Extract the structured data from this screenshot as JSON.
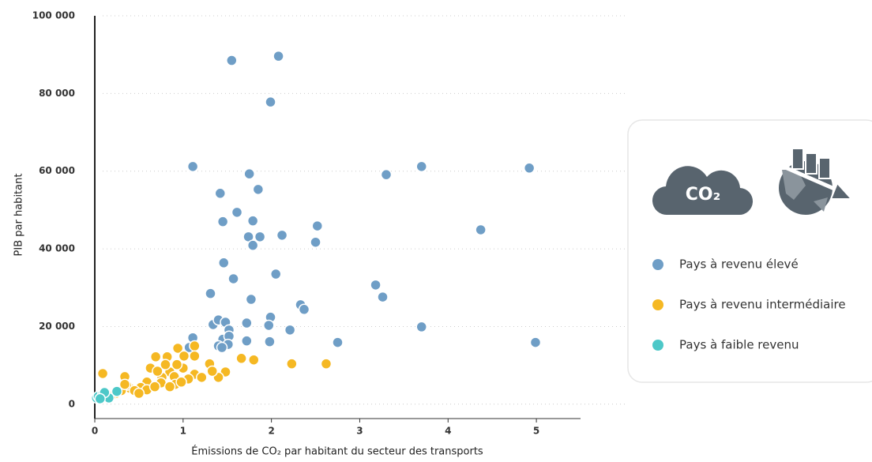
{
  "chart_data": {
    "type": "scatter",
    "x_label": "Émissions de CO₂ par habitant du secteur des transports",
    "y_label": "PIB par habitant",
    "icon_label": "CO₂",
    "xlim": [
      0,
      5.5
    ],
    "ylim": [
      -3700,
      100000
    ],
    "xticks": [
      0,
      1,
      2,
      3,
      4,
      5
    ],
    "yticks": [
      0,
      {
        "value": 20000,
        "label": "20 000"
      },
      {
        "value": 40000,
        "label": "40 000"
      },
      {
        "value": 60000,
        "label": "60 000"
      },
      {
        "value": 80000,
        "label": "80 000"
      },
      {
        "value": 100000,
        "label": "100 000"
      }
    ],
    "grid": true,
    "series": [
      {
        "name": "Pays à revenu élevé",
        "color": "#6f9ec6",
        "x": [
          1.55,
          2.08,
          1.99,
          1.11,
          1.75,
          3.3,
          3.7,
          4.92,
          1.85,
          1.42,
          1.61,
          1.79,
          1.45,
          2.52,
          4.37,
          1.74,
          1.87,
          2.12,
          2.5,
          1.79,
          1.46,
          2.05,
          1.57,
          3.18,
          3.26,
          1.31,
          1.77,
          2.33,
          2.37,
          1.34,
          1.4,
          1.48,
          1.72,
          1.99,
          1.97,
          2.21,
          3.7,
          1.52,
          1.11,
          1.45,
          1.52,
          1.72,
          2.75,
          1.98,
          4.99,
          1.4,
          1.51,
          1.44,
          1.07
        ],
        "values": [
          88500,
          89600,
          77800,
          61200,
          59300,
          59100,
          61200,
          60800,
          55300,
          54300,
          49400,
          47200,
          47000,
          45900,
          44900,
          43100,
          43100,
          43500,
          41700,
          40900,
          36400,
          33500,
          32300,
          30700,
          27600,
          28500,
          27000,
          25600,
          24400,
          20500,
          21700,
          21100,
          20900,
          22400,
          20300,
          19100,
          19900,
          19100,
          17100,
          16700,
          17500,
          16300,
          15900,
          16100,
          15900,
          15000,
          15400,
          14600,
          14600
        ]
      },
      {
        "name": "Pays à revenu intermédiaire",
        "color": "#f5b823",
        "x": [
          0.09,
          0.34,
          0.69,
          0.82,
          1.13,
          1.13,
          0.94,
          1.01,
          1.3,
          1.66,
          1.8,
          2.23,
          2.62,
          1.48,
          1.4,
          1.13,
          1.21,
          1.06,
          0.85,
          0.9,
          0.76,
          0.63,
          0.71,
          0.59,
          0.75,
          0.91,
          0.52,
          0.4,
          0.36,
          0.3,
          0.24,
          0.45,
          0.59,
          0.68,
          0.85,
          0.98,
          1.0,
          0.5,
          0.18,
          1.33,
          0.8,
          0.93,
          0.34
        ],
        "values": [
          7900,
          7100,
          12200,
          12200,
          15000,
          12400,
          14400,
          12400,
          10400,
          11800,
          11400,
          10400,
          10400,
          8300,
          6900,
          7700,
          6900,
          6500,
          8300,
          7100,
          6900,
          9300,
          8500,
          5700,
          5500,
          5100,
          4300,
          4100,
          4900,
          3500,
          2800,
          3500,
          3700,
          4500,
          4500,
          5700,
          9300,
          2800,
          2000,
          8500,
          10200,
          10200,
          5100
        ]
      },
      {
        "name": "Pays à faible revenu",
        "color": "#4dc8c8",
        "x": [
          0.02,
          0.04,
          0.09,
          0.13,
          0.16,
          0.25,
          0.11,
          0.06
        ],
        "values": [
          1600,
          2000,
          2600,
          2200,
          1600,
          3300,
          3000,
          1400
        ]
      }
    ]
  }
}
